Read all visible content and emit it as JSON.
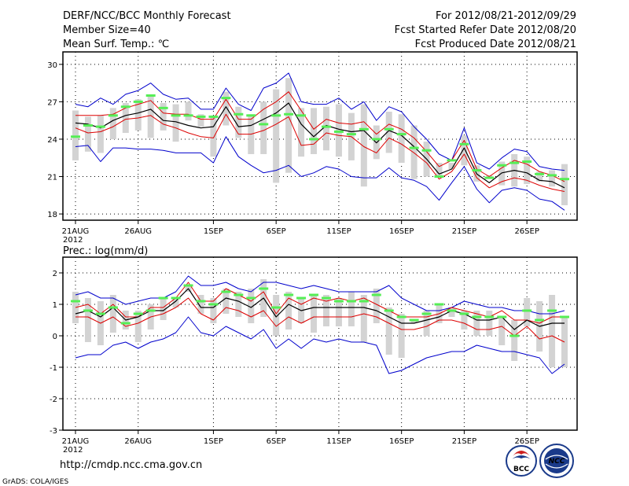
{
  "header": {
    "title": "DERF/NCC/BCC Monthly Forecast",
    "member_size": "Member Size=40",
    "variable": "Mean Surf. Temp.: ℃",
    "period": "For 2012/08/21-2012/09/29",
    "refer_date": "Fcst Started Refer Date 2012/08/20",
    "produced_date": "Fcst Produced Date 2012/08/21"
  },
  "footer": {
    "url": "http://cmdp.ncc.cma.gov.cn",
    "grads": "GrADS: COLA/IGES",
    "logo_bcc": "BCC",
    "logo_ncc": "NCC"
  },
  "colors": {
    "ensemble_box": "#d3d3d3",
    "median": "#55ee55",
    "mean_line": "#000000",
    "spread_lines": "#dd0000",
    "extreme_lines": "#0000cc",
    "grid": "#000000"
  },
  "chart_data": [
    {
      "type": "line",
      "title": "Mean Surf. Temp.: ℃",
      "ylim": [
        17.5,
        31
      ],
      "yticks": [
        18,
        21,
        24,
        27,
        30
      ],
      "ytick_labels": [
        "18",
        "21",
        "24",
        "27",
        "30"
      ],
      "x": [
        1,
        2,
        3,
        4,
        5,
        6,
        7,
        8,
        9,
        10,
        11,
        12,
        13,
        14,
        15,
        16,
        17,
        18,
        19,
        20,
        21,
        22,
        23,
        24,
        25,
        26,
        27,
        28,
        29,
        30,
        31,
        32,
        33,
        34,
        35,
        36,
        37,
        38,
        39,
        40
      ],
      "xticks": [
        1,
        6,
        12,
        17,
        22,
        27,
        32,
        37
      ],
      "xtick_labels": [
        "21AUG",
        "26AUG",
        "1SEP",
        "6SEP",
        "11SEP",
        "16SEP",
        "21SEP",
        "26SEP"
      ],
      "xtick_year": "2012",
      "series": [
        {
          "name": "max",
          "values": [
            26.8,
            26.6,
            27.3,
            26.8,
            27.6,
            27.9,
            28.5,
            27.6,
            27.2,
            27.3,
            26.4,
            26.4,
            28.1,
            26.8,
            26.3,
            28.1,
            28.5,
            29.3,
            27.0,
            26.8,
            26.8,
            27.3,
            26.4,
            27.0,
            25.5,
            26.6,
            26.2,
            25.0,
            24.0,
            22.8,
            22.3,
            24.9,
            22.1,
            21.6,
            22.5,
            23.2,
            23.0,
            21.8,
            21.6,
            21.5
          ]
        },
        {
          "name": "upper_spread",
          "values": [
            25.9,
            25.9,
            25.9,
            26.0,
            26.5,
            26.8,
            27.1,
            26.1,
            26.0,
            26.0,
            25.6,
            25.6,
            27.2,
            25.6,
            25.6,
            26.4,
            27.0,
            27.8,
            26.3,
            24.8,
            25.6,
            25.3,
            25.2,
            25.4,
            24.4,
            25.2,
            24.8,
            24.1,
            23.0,
            21.8,
            22.3,
            23.9,
            21.6,
            21.0,
            21.7,
            22.3,
            22.0,
            21.4,
            21.1,
            20.6
          ]
        },
        {
          "name": "mean",
          "values": [
            25.3,
            25.2,
            24.9,
            25.5,
            25.9,
            26.1,
            26.4,
            25.5,
            25.4,
            25.1,
            24.9,
            25.0,
            26.6,
            25.0,
            25.1,
            25.6,
            26.1,
            26.9,
            25.2,
            24.2,
            25.1,
            24.8,
            24.6,
            24.7,
            23.7,
            24.7,
            24.3,
            23.4,
            22.4,
            21.2,
            21.6,
            23.3,
            21.2,
            20.5,
            21.3,
            21.5,
            21.3,
            20.7,
            20.6,
            20.1
          ]
        },
        {
          "name": "lower_spread",
          "values": [
            24.9,
            24.5,
            24.6,
            25.0,
            25.6,
            25.7,
            25.9,
            25.2,
            24.9,
            24.5,
            24.2,
            24.1,
            26.0,
            24.4,
            24.4,
            24.7,
            25.2,
            25.8,
            23.5,
            23.6,
            24.5,
            24.3,
            24.2,
            23.4,
            22.9,
            24.1,
            23.6,
            22.9,
            22.1,
            20.8,
            21.4,
            22.8,
            20.9,
            20.1,
            20.6,
            20.9,
            20.7,
            20.3,
            20.0,
            19.8
          ]
        },
        {
          "name": "min",
          "values": [
            23.4,
            23.5,
            22.2,
            23.3,
            23.3,
            23.2,
            23.2,
            23.1,
            22.9,
            22.9,
            22.9,
            22.1,
            24.2,
            22.6,
            21.9,
            21.3,
            21.5,
            21.9,
            21.0,
            21.3,
            21.8,
            21.6,
            21.0,
            20.9,
            20.9,
            21.7,
            20.9,
            20.7,
            20.2,
            19.1,
            20.5,
            21.8,
            20.0,
            18.9,
            19.9,
            20.1,
            19.9,
            19.2,
            19.0,
            18.3
          ]
        },
        {
          "name": "median",
          "values": [
            24.2,
            25.1,
            25.0,
            25.9,
            26.6,
            27.0,
            27.5,
            26.5,
            25.9,
            25.9,
            25.8,
            25.8,
            27.3,
            26.0,
            25.9,
            25.2,
            25.9,
            26.0,
            25.9,
            24.0,
            25.0,
            24.6,
            24.4,
            24.8,
            24.0,
            24.8,
            24.4,
            23.3,
            23.1,
            21.0,
            22.3,
            23.6,
            21.5,
            20.9,
            21.9,
            22.1,
            22.2,
            21.2,
            21.1,
            20.8
          ]
        },
        {
          "name": "box_top",
          "values": [
            26.3,
            25.8,
            25.9,
            26.5,
            26.9,
            27.2,
            27.6,
            26.9,
            26.8,
            27.0,
            26.0,
            25.9,
            27.8,
            26.6,
            26.0,
            27.0,
            28.0,
            28.9,
            26.5,
            26.5,
            26.6,
            26.8,
            26.1,
            26.8,
            25.1,
            26.2,
            26.0,
            25.1,
            23.8,
            22.1,
            22.1,
            24.3,
            21.9,
            21.0,
            22.2,
            22.8,
            22.6,
            21.4,
            21.5,
            22.0
          ]
        },
        {
          "name": "box_bottom",
          "values": [
            22.3,
            23.0,
            22.9,
            24.0,
            24.5,
            24.7,
            24.1,
            24.7,
            23.8,
            25.5,
            25.0,
            22.6,
            25.1,
            24.1,
            22.8,
            22.8,
            20.5,
            21.3,
            22.6,
            22.8,
            23.1,
            22.6,
            22.3,
            20.2,
            22.4,
            22.9,
            22.1,
            20.8,
            21.0,
            21.1,
            21.6,
            21.9,
            20.6,
            21.1,
            20.3,
            20.2,
            20.4,
            20.6,
            20.2,
            18.7
          ]
        }
      ]
    },
    {
      "type": "line",
      "title": "Prec.: log(mm/d)",
      "ylim": [
        -3,
        2.5
      ],
      "yticks": [
        -3,
        -2,
        -1,
        0,
        1,
        2
      ],
      "ytick_labels": [
        "-3",
        "-2",
        "-1",
        "0",
        "1",
        "2"
      ],
      "x": [
        1,
        2,
        3,
        4,
        5,
        6,
        7,
        8,
        9,
        10,
        11,
        12,
        13,
        14,
        15,
        16,
        17,
        18,
        19,
        20,
        21,
        22,
        23,
        24,
        25,
        26,
        27,
        28,
        29,
        30,
        31,
        32,
        33,
        34,
        35,
        36,
        37,
        38,
        39,
        40
      ],
      "xticks": [
        1,
        6,
        12,
        17,
        22,
        27,
        32,
        37
      ],
      "xtick_labels": [
        "21AUG",
        "26AUG",
        "1SEP",
        "6SEP",
        "11SEP",
        "16SEP",
        "21SEP",
        "26SEP"
      ],
      "xtick_year": "2012",
      "series": [
        {
          "name": "max",
          "values": [
            1.3,
            1.4,
            1.2,
            1.2,
            1.0,
            1.1,
            1.2,
            1.2,
            1.4,
            1.9,
            1.6,
            1.6,
            1.7,
            1.5,
            1.4,
            1.7,
            1.7,
            1.6,
            1.5,
            1.6,
            1.5,
            1.4,
            1.4,
            1.4,
            1.4,
            1.6,
            1.2,
            1.0,
            0.8,
            0.8,
            0.9,
            1.1,
            1.0,
            0.9,
            0.9,
            0.8,
            0.8,
            0.7,
            0.7,
            0.8
          ]
        },
        {
          "name": "upper_spread",
          "values": [
            0.9,
            1.0,
            0.7,
            1.0,
            0.6,
            0.6,
            0.9,
            0.9,
            1.2,
            1.7,
            1.1,
            1.1,
            1.5,
            1.3,
            1.1,
            1.4,
            0.7,
            1.2,
            1.0,
            1.2,
            1.1,
            1.2,
            1.1,
            1.2,
            1.0,
            0.8,
            0.6,
            0.6,
            0.6,
            0.7,
            0.9,
            0.8,
            0.7,
            0.6,
            0.8,
            0.5,
            0.5,
            0.4,
            0.6,
            0.6
          ]
        },
        {
          "name": "mean",
          "values": [
            0.7,
            0.8,
            0.6,
            0.9,
            0.5,
            0.6,
            0.8,
            0.8,
            1.1,
            1.5,
            0.9,
            0.9,
            1.2,
            1.1,
            0.9,
            1.2,
            0.6,
            1.0,
            0.8,
            0.9,
            0.9,
            0.9,
            0.9,
            0.9,
            0.8,
            0.6,
            0.4,
            0.4,
            0.5,
            0.6,
            0.8,
            0.7,
            0.5,
            0.5,
            0.6,
            0.2,
            0.5,
            0.3,
            0.4,
            0.4
          ]
        },
        {
          "name": "lower_spread",
          "values": [
            0.6,
            0.6,
            0.4,
            0.6,
            0.3,
            0.4,
            0.6,
            0.7,
            0.9,
            1.2,
            0.7,
            0.5,
            0.9,
            0.8,
            0.6,
            0.8,
            0.3,
            0.6,
            0.4,
            0.6,
            0.6,
            0.6,
            0.6,
            0.7,
            0.6,
            0.4,
            0.2,
            0.2,
            0.3,
            0.5,
            0.5,
            0.4,
            0.2,
            0.2,
            0.3,
            0.0,
            0.3,
            -0.1,
            0.0,
            -0.2
          ]
        },
        {
          "name": "min",
          "values": [
            -0.7,
            -0.6,
            -0.6,
            -0.3,
            -0.2,
            -0.4,
            -0.2,
            -0.1,
            0.1,
            0.6,
            0.1,
            0.0,
            0.3,
            0.1,
            -0.1,
            0.2,
            -0.4,
            -0.1,
            -0.4,
            -0.1,
            -0.2,
            -0.1,
            -0.2,
            -0.2,
            -0.3,
            -1.2,
            -1.1,
            -0.9,
            -0.7,
            -0.6,
            -0.5,
            -0.5,
            -0.3,
            -0.4,
            -0.5,
            -0.5,
            -0.6,
            -0.7,
            -1.2,
            -0.9
          ]
        },
        {
          "name": "median",
          "values": [
            1.1,
            0.8,
            0.7,
            0.9,
            0.4,
            0.7,
            0.8,
            1.2,
            1.2,
            1.6,
            1.1,
            1.0,
            1.4,
            1.3,
            1.2,
            1.5,
            0.9,
            1.3,
            1.2,
            1.3,
            1.2,
            1.1,
            1.1,
            1.1,
            1.3,
            0.8,
            0.6,
            0.5,
            0.7,
            1.0,
            0.8,
            0.7,
            0.6,
            0.6,
            0.6,
            0.0,
            0.8,
            0.5,
            0.8,
            0.6
          ]
        },
        {
          "name": "box_top",
          "values": [
            1.4,
            1.2,
            1.1,
            1.3,
            0.8,
            0.8,
            1.0,
            1.2,
            1.2,
            1.6,
            1.3,
            1.2,
            1.5,
            1.4,
            1.5,
            1.8,
            1.3,
            1.4,
            1.2,
            1.3,
            1.3,
            1.2,
            1.4,
            1.3,
            1.5,
            0.9,
            0.7,
            0.5,
            0.8,
            1.0,
            0.9,
            0.8,
            0.8,
            0.8,
            0.6,
            0.5,
            1.2,
            1.1,
            1.3,
            0.6
          ]
        },
        {
          "name": "box_bottom",
          "values": [
            0.4,
            -0.2,
            -0.3,
            0.1,
            0.2,
            -0.2,
            0.2,
            0.5,
            0.9,
            1.4,
            0.7,
            0.4,
            0.7,
            0.6,
            0.4,
            0.6,
            0.0,
            0.2,
            0.4,
            0.1,
            0.3,
            0.3,
            0.3,
            -0.2,
            0.4,
            -0.6,
            -0.7,
            0.4,
            0.0,
            0.4,
            0.6,
            0.2,
            0.0,
            0.0,
            -0.3,
            -0.8,
            0.3,
            -0.5,
            -1.0,
            -1.0
          ]
        }
      ]
    }
  ]
}
